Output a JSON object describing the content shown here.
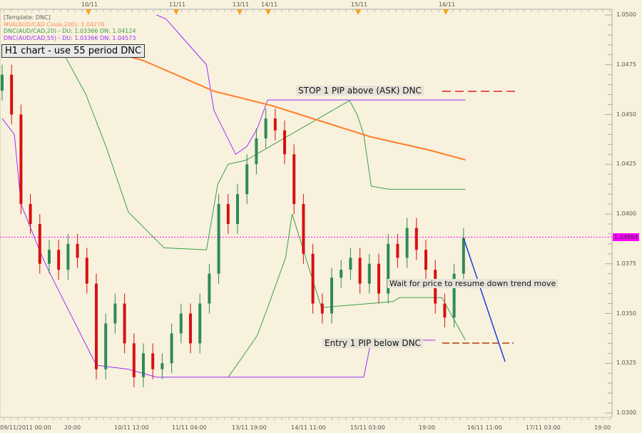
{
  "chart_data": {
    "type": "candlestick",
    "symbol": "AUD/CAD",
    "timeframe": "H1",
    "ylim": [
      1.03,
      1.05
    ],
    "y_ticks": [
      "1.0500",
      "1.0475",
      "1.0450",
      "1.0425",
      "1.0400",
      "1.0375",
      "1.0350",
      "1.0325",
      "1.0300"
    ],
    "x_tick_labels": [
      "09/11/2011 00:00",
      "20:00",
      "10/11 12:00",
      "11/11 04:00",
      "13/11 19:00",
      "14/11 11:00",
      "15/11 03:00",
      "19:00",
      "16/11 11:00",
      "17/11 03:00",
      "19:00"
    ],
    "top_markers": [
      "10/11",
      "11/11",
      "13/11",
      "14/11",
      "15/11",
      "16/11"
    ],
    "current_price": "1.03884",
    "closes": [
      1.047,
      1.045,
      1.0405,
      1.0395,
      1.0375,
      1.0382,
      1.0372,
      1.0385,
      1.0378,
      1.0365,
      1.0322,
      1.0345,
      1.0355,
      1.0335,
      1.0318,
      1.033,
      1.0322,
      1.0325,
      1.034,
      1.035,
      1.0335,
      1.0355,
      1.037,
      1.0405,
      1.0395,
      1.041,
      1.0425,
      1.0438,
      1.0448,
      1.0442,
      1.043,
      1.0405,
      1.038,
      1.0355,
      1.035,
      1.0368,
      1.0372,
      1.0378,
      1.0365,
      1.0375,
      1.036,
      1.0385,
      1.0378,
      1.0393,
      1.0382,
      1.0372,
      1.0355,
      1.0348,
      1.037,
      1.0388
    ],
    "open_first": 1.0462,
    "ma200": [
      [
        11,
        1.04824
      ],
      [
        15,
        1.04771
      ],
      [
        22.5,
        1.04617
      ],
      [
        28.6,
        1.04545
      ],
      [
        33.9,
        1.04466
      ],
      [
        39.2,
        1.04387
      ],
      [
        45.2,
        1.04323
      ],
      [
        49.2,
        1.04272
      ]
    ],
    "dnc55_upper": [
      [
        16.4,
        1.05
      ],
      [
        17.4,
        1.0498
      ],
      [
        21.7,
        1.0475
      ],
      [
        22.5,
        1.0452
      ],
      [
        24.8,
        1.043
      ],
      [
        26.0,
        1.0434
      ],
      [
        27.1,
        1.0443
      ],
      [
        28.2,
        1.04573
      ],
      [
        49.2,
        1.04573
      ]
    ],
    "dnc55_lower": [
      [
        0,
        1.0448
      ],
      [
        1.3,
        1.044
      ],
      [
        2.0,
        1.0405
      ],
      [
        4.3,
        1.0378
      ],
      [
        5.1,
        1.037
      ],
      [
        10.0,
        1.0324
      ],
      [
        13.4,
        1.0322
      ],
      [
        16.4,
        1.0318
      ],
      [
        38.4,
        1.0318
      ],
      [
        39.2,
        1.03366
      ],
      [
        46.0,
        1.03366
      ]
    ],
    "dnc20_upper": [
      [
        6.6,
        1.048
      ],
      [
        8.9,
        1.046
      ],
      [
        11.1,
        1.0433
      ],
      [
        13.4,
        1.0401
      ],
      [
        17.2,
        1.0383
      ],
      [
        21.7,
        1.0382
      ],
      [
        22.9,
        1.0415
      ],
      [
        24.0,
        1.0425
      ],
      [
        25.9,
        1.0427
      ],
      [
        36.9,
        1.0457
      ],
      [
        37.7,
        1.045
      ],
      [
        38.4,
        1.044
      ],
      [
        39.2,
        1.0414
      ],
      [
        41.1,
        1.04124
      ],
      [
        49.2,
        1.04124
      ]
    ],
    "dnc20_lower": [
      [
        24.0,
        1.0318
      ],
      [
        25.5,
        1.0328
      ],
      [
        27.1,
        1.0339
      ],
      [
        28.2,
        1.0353
      ],
      [
        30.1,
        1.0378
      ],
      [
        30.8,
        1.04
      ],
      [
        33.9,
        1.0353
      ],
      [
        41.5,
        1.0356
      ],
      [
        42.2,
        1.0358
      ],
      [
        46.7,
        1.0358
      ],
      [
        49.2,
        1.03366
      ]
    ]
  },
  "legend": {
    "template": "[Template: DNC]",
    "ma": "MVA(AUD/CAD.Close,200): 1.04276",
    "dnc20": "DNC(AUD/CAD,20) -  DU: 1.03366  DN: 1.04124",
    "dnc55": "DNC(AUD/CAD,55) -  DU: 1.03366  DN: 1.04573"
  },
  "annotations": {
    "title": "H1 chart - use 55 period DNC",
    "stop": "STOP 1 PIP above (ASK) DNC",
    "wait": "Wait for price to resume down trend move",
    "entry": "Entry 1 PIP below DNC"
  },
  "colors": {
    "bull": "#2e8b57",
    "bear": "#d81010",
    "ma": "#ff7f2a",
    "dnc20": "#3aa04a",
    "dnc55": "#9b30ff",
    "current": "#ff00ff",
    "projection": "#1a3fe0"
  }
}
